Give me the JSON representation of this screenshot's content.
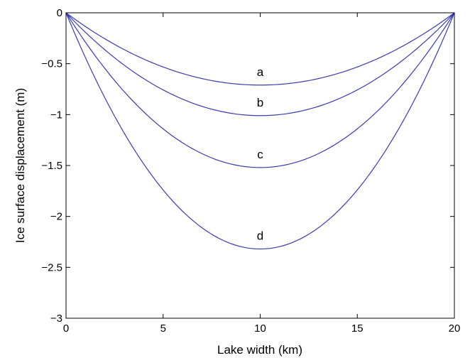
{
  "chart_data": {
    "type": "line",
    "title": "",
    "xlabel": "Lake width (km)",
    "ylabel": "Ice surface displacement (m)",
    "xlim": [
      0,
      20
    ],
    "ylim": [
      -3,
      0
    ],
    "xticks": [
      0,
      5,
      10,
      15,
      20
    ],
    "xtick_labels": [
      "0",
      "5",
      "10",
      "15",
      "20"
    ],
    "yticks": [
      0,
      -0.5,
      -1,
      -1.5,
      -2,
      -2.5,
      -3
    ],
    "ytick_labels": [
      "0",
      "−0.5",
      "−1",
      "−1.5",
      "−2",
      "−2.5",
      "−3"
    ],
    "grid": false,
    "line_color": "#3b3bb0",
    "series": [
      {
        "name": "a",
        "x": [
          0,
          2.5,
          5,
          7.5,
          10,
          12.5,
          15,
          17.5,
          20
        ],
        "values": [
          0,
          -0.31,
          -0.53,
          -0.66,
          -0.71,
          -0.66,
          -0.53,
          -0.31,
          0
        ]
      },
      {
        "name": "b",
        "x": [
          0,
          2.5,
          5,
          7.5,
          10,
          12.5,
          15,
          17.5,
          20
        ],
        "values": [
          0,
          -0.44,
          -0.76,
          -0.95,
          -1.01,
          -0.95,
          -0.76,
          -0.44,
          0
        ]
      },
      {
        "name": "c",
        "x": [
          0,
          2.5,
          5,
          7.5,
          10,
          12.5,
          15,
          17.5,
          20
        ],
        "values": [
          0,
          -0.66,
          -1.14,
          -1.42,
          -1.52,
          -1.42,
          -1.14,
          -0.66,
          0
        ]
      },
      {
        "name": "d",
        "x": [
          0,
          2.5,
          5,
          7.5,
          10,
          12.5,
          15,
          17.5,
          20
        ],
        "values": [
          0,
          -1.01,
          -1.74,
          -2.17,
          -2.32,
          -2.17,
          -1.74,
          -1.01,
          0
        ]
      }
    ],
    "annotations": [
      {
        "text": "a",
        "x": 10,
        "y": -0.62
      },
      {
        "text": "b",
        "x": 10,
        "y": -0.92
      },
      {
        "text": "c",
        "x": 10,
        "y": -1.43
      },
      {
        "text": "d",
        "x": 10,
        "y": -2.23
      }
    ]
  }
}
